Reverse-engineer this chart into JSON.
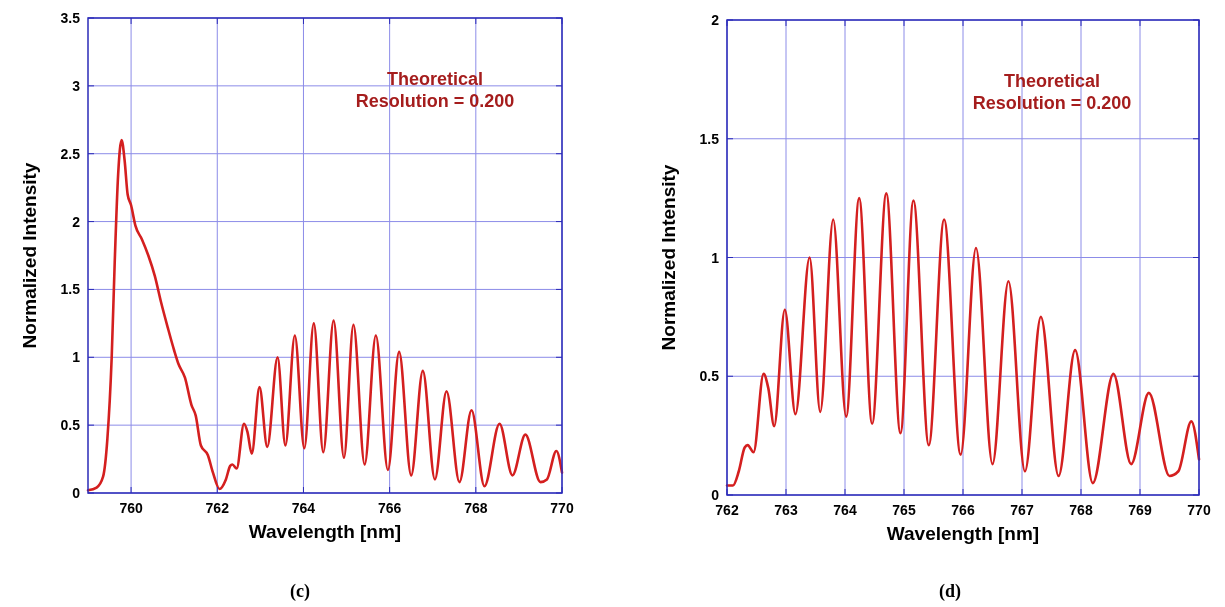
{
  "chart_data": [
    {
      "type": "line",
      "xlabel": "Wavelength [nm]",
      "ylabel": "Normalized Intensity",
      "annotations": [
        "Theoretical\nResolution = 0.200",
        "(c)"
      ],
      "xlim": [
        759,
        770
      ],
      "xticks": [
        760,
        762,
        764,
        766,
        768,
        770
      ],
      "ylim": [
        0,
        3.5
      ],
      "yticks": [
        0,
        0.5,
        1,
        1.5,
        2,
        2.5,
        3,
        3.5
      ],
      "grid": true,
      "series": [
        {
          "color": "#d41f1f",
          "x": [
            759.0,
            759.2,
            759.35,
            759.45,
            759.55,
            759.62,
            759.7,
            759.78,
            759.85,
            759.92,
            760.0,
            760.1,
            760.25,
            760.4,
            760.55,
            760.7,
            760.85,
            761.0,
            761.1,
            761.25,
            761.4,
            761.5,
            761.62,
            761.78,
            761.9,
            762.05,
            762.2,
            762.3,
            762.35,
            762.45,
            762.62,
            762.7,
            762.8,
            762.98,
            763.16,
            763.4,
            763.58,
            763.8,
            764.02,
            764.24,
            764.46,
            764.7,
            764.94,
            765.16,
            765.42,
            765.68,
            765.96,
            766.22,
            766.5,
            766.77,
            767.05,
            767.32,
            767.62,
            767.9,
            768.2,
            768.55,
            768.85,
            769.15,
            769.5,
            769.65,
            769.87,
            770.0
          ],
          "values": [
            0.02,
            0.04,
            0.12,
            0.4,
            1.0,
            1.7,
            2.35,
            2.6,
            2.45,
            2.2,
            2.12,
            1.97,
            1.87,
            1.75,
            1.6,
            1.4,
            1.22,
            1.05,
            0.95,
            0.85,
            0.65,
            0.57,
            0.35,
            0.28,
            0.15,
            0.03,
            0.1,
            0.2,
            0.21,
            0.18,
            0.51,
            0.45,
            0.29,
            0.78,
            0.34,
            1.0,
            0.35,
            1.16,
            0.33,
            1.25,
            0.3,
            1.27,
            0.26,
            1.24,
            0.21,
            1.16,
            0.17,
            1.04,
            0.13,
            0.9,
            0.1,
            0.75,
            0.08,
            0.61,
            0.05,
            0.51,
            0.13,
            0.43,
            0.08,
            0.1,
            0.31,
            0.15
          ]
        }
      ]
    },
    {
      "type": "line",
      "xlabel": "Wavelength [nm]",
      "ylabel": "Normalized Intensity",
      "annotations": [
        "Theoretical\nResolution = 0.200",
        "(d)"
      ],
      "xlim": [
        762,
        770
      ],
      "xticks": [
        762,
        763,
        764,
        765,
        766,
        767,
        768,
        769,
        770
      ],
      "ylim": [
        0,
        2
      ],
      "yticks": [
        0,
        0.5,
        1,
        1.5,
        2
      ],
      "grid": true,
      "series": [
        {
          "color": "#d41f1f",
          "x": [
            762.0,
            762.1,
            762.2,
            762.3,
            762.35,
            762.45,
            762.62,
            762.7,
            762.8,
            762.98,
            763.16,
            763.4,
            763.58,
            763.8,
            764.02,
            764.24,
            764.46,
            764.7,
            764.94,
            765.16,
            765.42,
            765.68,
            765.96,
            766.22,
            766.5,
            766.77,
            767.05,
            767.32,
            767.62,
            767.9,
            768.2,
            768.55,
            768.85,
            769.15,
            769.5,
            769.65,
            769.87,
            770.0
          ],
          "values": [
            0.04,
            0.04,
            0.1,
            0.2,
            0.21,
            0.18,
            0.51,
            0.45,
            0.29,
            0.78,
            0.34,
            1.0,
            0.35,
            1.16,
            0.33,
            1.25,
            0.3,
            1.27,
            0.26,
            1.24,
            0.21,
            1.16,
            0.17,
            1.04,
            0.13,
            0.9,
            0.1,
            0.75,
            0.08,
            0.61,
            0.05,
            0.51,
            0.13,
            0.43,
            0.08,
            0.1,
            0.31,
            0.15
          ]
        }
      ]
    }
  ]
}
